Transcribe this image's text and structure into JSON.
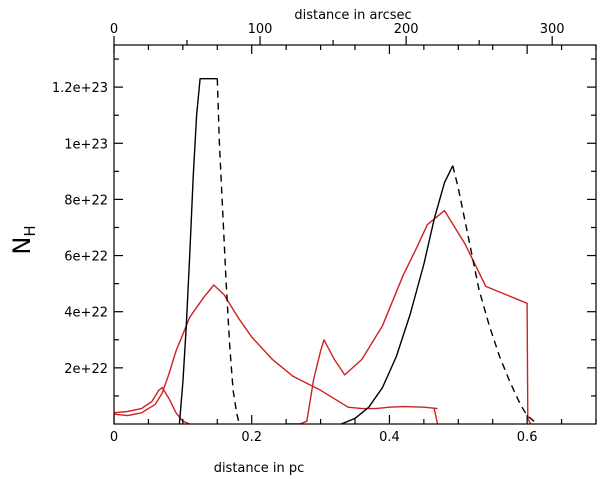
{
  "chart_data": {
    "type": "line",
    "xlabel": "distance in pc",
    "x2label": "distance in arcsec",
    "ylabel": "N",
    "ylabel_sub": "H",
    "xlim": [
      0,
      0.7
    ],
    "x2lim": [
      0,
      330
    ],
    "ylim": [
      0,
      1.35e+23
    ],
    "xticks": [
      0,
      0.2,
      0.4,
      0.6
    ],
    "xtick_labels": [
      "0",
      "0.2",
      "0.4",
      "0.6"
    ],
    "x2ticks": [
      0,
      100,
      200,
      300
    ],
    "x2tick_labels": [
      "0",
      "100",
      "200",
      "300"
    ],
    "yticks": [
      2e+22,
      4e+22,
      6e+22,
      8e+22,
      1e+23,
      1.2e+23
    ],
    "ytick_labels": [
      "2e+22",
      "4e+22",
      "6e+22",
      "8e+22",
      "1e+23",
      "1.2e+23"
    ],
    "grid": false,
    "colors": {
      "red": "#cc2222",
      "black": "#000000",
      "axis": "#000000"
    },
    "series": [
      {
        "color": "#cc2222",
        "style": "solid",
        "x": [
          0,
          0.02,
          0.04,
          0.06,
          0.07,
          0.08,
          0.09,
          0.1,
          0.11,
          0.13,
          0.145,
          0.16,
          0.18,
          0.2,
          0.23,
          0.26,
          0.28,
          0.3,
          0.32,
          0.34,
          0.36,
          0.38,
          0.4,
          0.42,
          0.45,
          0.47
        ],
        "y": [
          3.5e+21,
          3e+21,
          4e+21,
          7e+21,
          1.1e+22,
          1.8e+22,
          2.6e+22,
          3.2e+22,
          3.8e+22,
          4.5e+22,
          4.95e+22,
          4.6e+22,
          3.8e+22,
          3.1e+22,
          2.3e+22,
          1.7e+22,
          1.45e+22,
          1.2e+22,
          9e+21,
          6e+21,
          5.5e+21,
          5.5e+21,
          6e+21,
          6.2e+21,
          6e+21,
          5.5e+21
        ]
      },
      {
        "color": "#cc2222",
        "style": "solid",
        "x": [
          0,
          0.02,
          0.04,
          0.055,
          0.065,
          0.07,
          0.08,
          0.09,
          0.1,
          0.11
        ],
        "y": [
          4e+21,
          4.5e+21,
          5.5e+21,
          8e+21,
          1.2e+22,
          1.3e+22,
          9e+21,
          4e+21,
          1e+21,
          0
        ]
      },
      {
        "color": "#cc2222",
        "style": "solid",
        "x": [
          0.465,
          0.468,
          0.47
        ],
        "y": [
          5.5e+21,
          2e+21,
          0
        ]
      },
      {
        "color": "#cc2222",
        "style": "solid",
        "x": [
          0.25,
          0.27,
          0.28,
          0.29,
          0.3,
          0.305,
          0.32,
          0.335,
          0.36,
          0.39,
          0.42,
          0.44,
          0.455,
          0.48,
          0.51,
          0.54,
          0.57,
          0.6,
          0.601,
          0.605
        ],
        "y": [
          0,
          0,
          1e+21,
          1.6e+22,
          2.6e+22,
          3e+22,
          2.3e+22,
          1.75e+22,
          2.3e+22,
          3.5e+22,
          5.3e+22,
          6.3e+22,
          7.1e+22,
          7.6e+22,
          6.4e+22,
          4.9e+22,
          4.6e+22,
          4.3e+22,
          2e+21,
          0
        ]
      },
      {
        "color": "#000000",
        "style": "solid",
        "x": [
          0.095,
          0.1,
          0.105,
          0.11,
          0.115,
          0.12,
          0.125,
          0.15
        ],
        "y": [
          0,
          1.5e+22,
          3.5e+22,
          6e+22,
          8.8e+22,
          1.1e+23,
          1.23e+23,
          1.23e+23
        ]
      },
      {
        "color": "#000000",
        "style": "dashed",
        "x": [
          0.15,
          0.153,
          0.158,
          0.163,
          0.168,
          0.173,
          0.178,
          0.182
        ],
        "y": [
          1.23e+23,
          1e+23,
          7.5e+22,
          5e+22,
          2.8e+22,
          1.2e+22,
          4e+21,
          0
        ]
      },
      {
        "color": "#000000",
        "style": "solid",
        "x": [
          0.33,
          0.35,
          0.37,
          0.39,
          0.41,
          0.43,
          0.45,
          0.465,
          0.48,
          0.492
        ],
        "y": [
          0,
          2e+21,
          6e+21,
          1.3e+22,
          2.4e+22,
          3.9e+22,
          5.7e+22,
          7.3e+22,
          8.6e+22,
          9.2e+22
        ]
      },
      {
        "color": "#000000",
        "style": "dashed",
        "x": [
          0.492,
          0.5,
          0.51,
          0.52,
          0.53,
          0.545,
          0.56,
          0.575,
          0.59,
          0.6,
          0.615
        ],
        "y": [
          9.2e+22,
          8.4e+22,
          7.2e+22,
          6e+22,
          4.8e+22,
          3.5e+22,
          2.4e+22,
          1.5e+22,
          7e+21,
          3e+21,
          0
        ]
      }
    ]
  }
}
